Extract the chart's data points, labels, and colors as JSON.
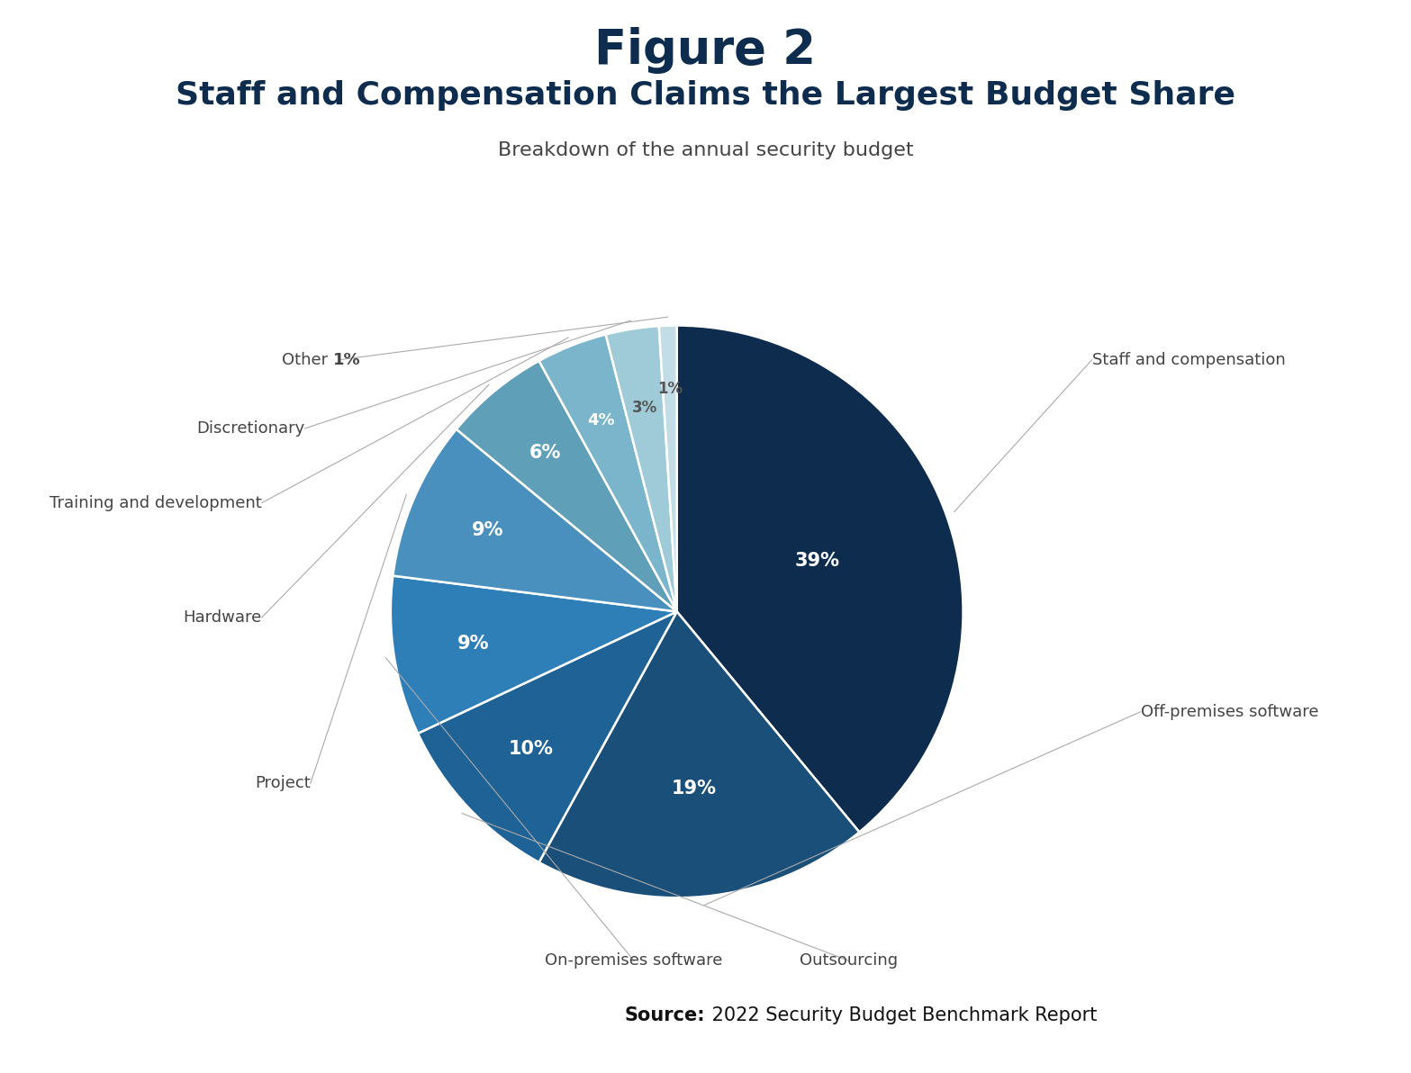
{
  "title_line1": "Figure 2",
  "title_line2": "Staff and Compensation Claims the Largest Budget Share",
  "subtitle": "Breakdown of the annual security budget",
  "source_bold": "Source:",
  "source_rest": " 2022 Security Budget Benchmark Report",
  "slices": [
    {
      "label": "Staff and compensation",
      "value": 39,
      "color": "#0e2d4e",
      "pct_label": "39%"
    },
    {
      "label": "Off-premises software",
      "value": 19,
      "color": "#1a4f7a",
      "pct_label": "19%"
    },
    {
      "label": "Outsourcing",
      "value": 10,
      "color": "#1f6396",
      "pct_label": "10%"
    },
    {
      "label": "On-premises software",
      "value": 9,
      "color": "#2e7fb8",
      "pct_label": "9%"
    },
    {
      "label": "Project",
      "value": 9,
      "color": "#4a90be",
      "pct_label": "9%"
    },
    {
      "label": "Hardware",
      "value": 6,
      "color": "#5f9fb8",
      "pct_label": "6%"
    },
    {
      "label": "Training and development",
      "value": 4,
      "color": "#7ab5cb",
      "pct_label": "4%"
    },
    {
      "label": "Discretionary",
      "value": 3,
      "color": "#9fcbd8",
      "pct_label": "3%"
    },
    {
      "label": "Other",
      "value": 1,
      "color": "#c2dde6",
      "pct_label": "1%"
    }
  ],
  "background_color": "#ffffff",
  "title_color": "#0e2d4e",
  "subtitle_color": "#444444",
  "label_color": "#444444"
}
